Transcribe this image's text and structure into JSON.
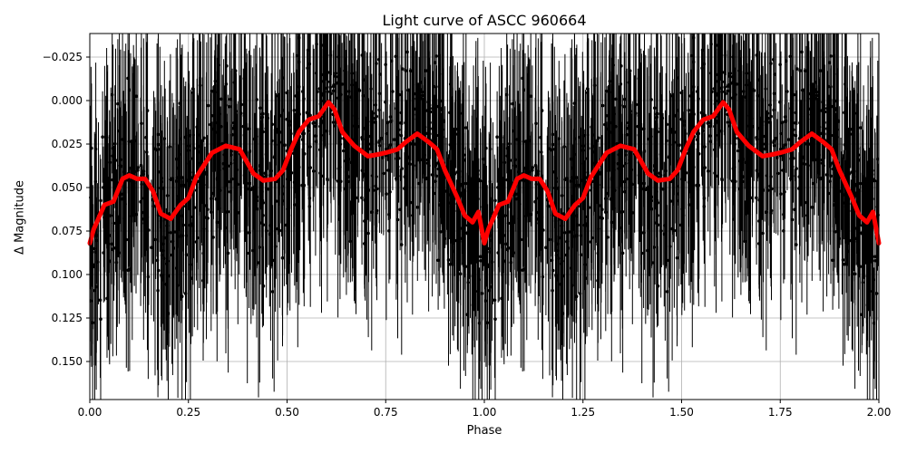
{
  "chart_data": {
    "type": "scatter",
    "title": "Light curve of ASCC 960664",
    "xlabel": "Phase",
    "ylabel": "Δ Magnitude",
    "xlim": [
      0.0,
      2.0
    ],
    "ylim": [
      0.172,
      -0.0385
    ],
    "y_inverted": true,
    "grid": true,
    "x_ticks": [
      "0.00",
      "0.25",
      "0.50",
      "0.75",
      "1.00",
      "1.25",
      "1.50",
      "1.75",
      "2.00"
    ],
    "y_ticks": [
      "−0.025",
      "0.000",
      "0.025",
      "0.050",
      "0.075",
      "0.100",
      "0.125",
      "0.150"
    ],
    "series": [
      {
        "name": "observations",
        "style": "black points with vertical error bars",
        "color": "#000000",
        "description": "Dense scatter of photometric measurements spanning roughly −0.04 to 0.17 with large error bars, repeated for phase 0–1 and 1–2"
      },
      {
        "name": "smoothed model",
        "style": "thick red line",
        "color": "#ff0000",
        "x": [
          0.0,
          0.01,
          0.037,
          0.06,
          0.083,
          0.1,
          0.12,
          0.14,
          0.16,
          0.18,
          0.205,
          0.23,
          0.25,
          0.27,
          0.29,
          0.31,
          0.345,
          0.38,
          0.4,
          0.415,
          0.44,
          0.47,
          0.49,
          0.51,
          0.53,
          0.555,
          0.58,
          0.605,
          0.62,
          0.64,
          0.67,
          0.705,
          0.73,
          0.75,
          0.78,
          0.8,
          0.83,
          0.86,
          0.88,
          0.9,
          0.93,
          0.95,
          0.97,
          0.985,
          1.0
        ],
        "values": [
          0.082,
          0.074,
          0.06,
          0.058,
          0.045,
          0.043,
          0.045,
          0.045,
          0.052,
          0.065,
          0.068,
          0.06,
          0.056,
          0.044,
          0.037,
          0.03,
          0.026,
          0.028,
          0.036,
          0.042,
          0.046,
          0.045,
          0.04,
          0.028,
          0.018,
          0.011,
          0.009,
          0.001,
          0.005,
          0.018,
          0.026,
          0.032,
          0.031,
          0.03,
          0.028,
          0.024,
          0.019,
          0.024,
          0.028,
          0.04,
          0.055,
          0.066,
          0.07,
          0.064,
          0.082
        ],
        "periodic_repeat": 1.0
      }
    ]
  }
}
